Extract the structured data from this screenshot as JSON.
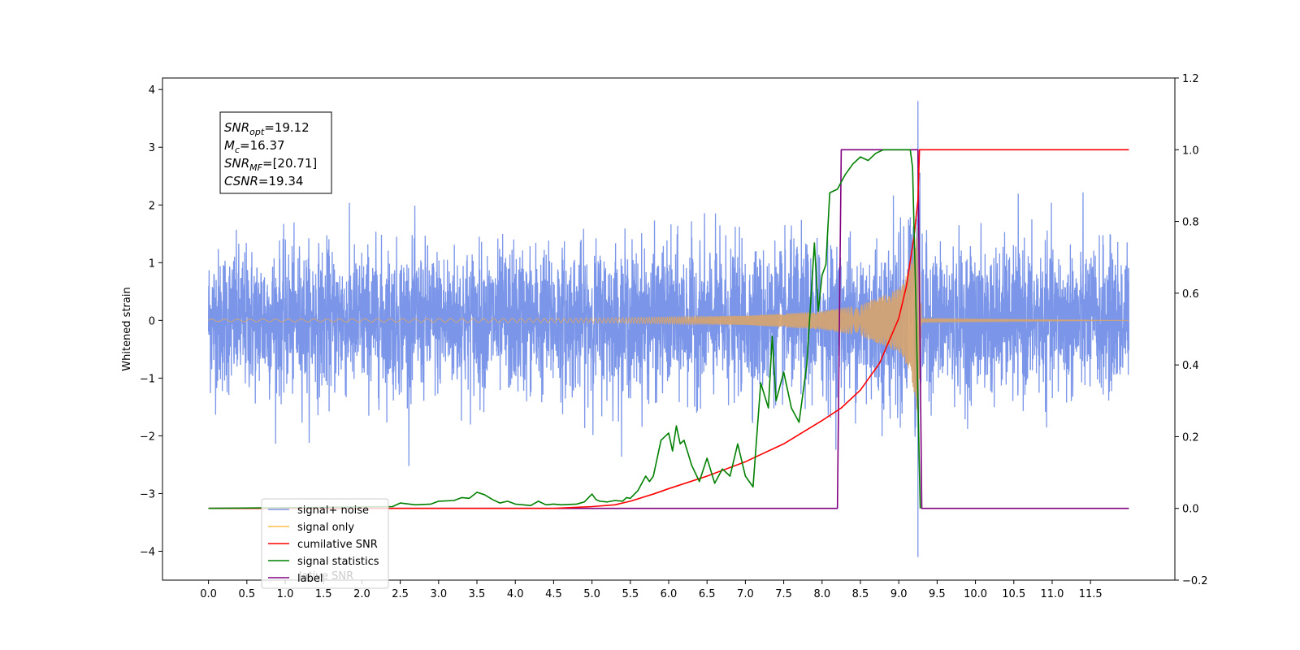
{
  "chart_data": {
    "type": "line",
    "ylabel_left": "Whitened strain",
    "xlim": [
      -0.6,
      12.6
    ],
    "ylim_left": [
      -4.5,
      4.2
    ],
    "ylim_right": [
      -0.2,
      1.2
    ],
    "xticks": [
      0.0,
      0.5,
      1.0,
      1.5,
      2.0,
      2.5,
      3.0,
      3.5,
      4.0,
      4.5,
      5.0,
      5.5,
      6.0,
      6.5,
      7.0,
      7.5,
      8.0,
      8.5,
      9.0,
      9.5,
      10.0,
      10.5,
      11.0,
      11.5
    ],
    "xtick_labels": [
      "0.0",
      "0.5",
      "1.0",
      "1.5",
      "2.0",
      "2.5",
      "3.0",
      "3.5",
      "4.0",
      "4.5",
      "5.0",
      "5.5",
      "6.0",
      "6.5",
      "7.0",
      "7.5",
      "8.0",
      "8.5",
      "9.0",
      "9.5",
      "10.0",
      "10.5",
      "11.0",
      "11.5"
    ],
    "yticks_left": [
      -4,
      -3,
      -2,
      -1,
      0,
      1,
      2,
      3,
      4
    ],
    "ytick_labels_left": [
      "−4",
      "−3",
      "−2",
      "−1",
      "0",
      "1",
      "2",
      "3",
      "4"
    ],
    "yticks_right": [
      -0.2,
      0.0,
      0.2,
      0.4,
      0.6,
      0.8,
      1.0,
      1.2
    ],
    "ytick_labels_right": [
      "−0.2",
      "0.0",
      "0.2",
      "0.4",
      "0.6",
      "0.8",
      "1.0",
      "1.2"
    ],
    "annotation": {
      "snr_opt": {
        "base": "SNR",
        "sub": "opt",
        "value": "=19.12"
      },
      "mc": {
        "base": "M",
        "sub": "c",
        "value": "=16.37"
      },
      "snr_mf": {
        "base": "SNR",
        "sub": "MF",
        "value": "=[20.71]"
      },
      "csnr": {
        "base": "CSNR",
        "sub": "",
        "value": "=19.34"
      }
    },
    "legend": {
      "placement": "lower-left",
      "entries": [
        {
          "label": "signal+ noise",
          "color": "#7b96e8"
        },
        {
          "label": "signal only",
          "color": "#ffc04d"
        },
        {
          "label": "cumilative SNR",
          "color": "#ff0000"
        },
        {
          "label": "signal statistics",
          "color": "#008000"
        },
        {
          "label": "label",
          "color": "#800080"
        }
      ],
      "ghost_text": "lative SNR"
    },
    "series": [
      {
        "name": "signal+ noise",
        "axis": "left",
        "color": "#7b96e8",
        "x_range": [
          0.0,
          12.0
        ],
        "noise_sigma": 0.62,
        "spike": {
          "x": 9.25,
          "high": 3.8,
          "low": -4.1
        }
      },
      {
        "name": "signal only",
        "axis": "left",
        "color": "#d4a373",
        "chirp_peak_x": 9.25,
        "envelope": [
          [
            0.0,
            0.02
          ],
          [
            5.0,
            0.04
          ],
          [
            7.0,
            0.08
          ],
          [
            8.0,
            0.16
          ],
          [
            8.5,
            0.27
          ],
          [
            9.0,
            0.55
          ],
          [
            9.15,
            0.9
          ],
          [
            9.25,
            1.7
          ],
          [
            9.3,
            0.03
          ],
          [
            12.0,
            0.0
          ]
        ]
      },
      {
        "name": "cumilative SNR",
        "axis": "right",
        "color": "#ff0000",
        "x": [
          0.0,
          4.5,
          5.0,
          5.3,
          5.5,
          5.8,
          6.0,
          6.5,
          7.0,
          7.5,
          8.0,
          8.25,
          8.5,
          8.75,
          9.0,
          9.1,
          9.2,
          9.25,
          9.27,
          12.0
        ],
        "y": [
          0.0,
          0.0,
          0.005,
          0.01,
          0.02,
          0.04,
          0.055,
          0.09,
          0.13,
          0.18,
          0.245,
          0.28,
          0.33,
          0.405,
          0.53,
          0.62,
          0.76,
          0.86,
          1.0,
          1.0
        ]
      },
      {
        "name": "signal statistics",
        "axis": "right",
        "color": "#008000",
        "x": [
          0.0,
          2.4,
          2.5,
          2.7,
          2.9,
          3.0,
          3.2,
          3.3,
          3.4,
          3.5,
          3.6,
          3.7,
          3.8,
          3.9,
          4.0,
          4.1,
          4.2,
          4.3,
          4.4,
          4.5,
          4.6,
          4.8,
          4.9,
          5.0,
          5.05,
          5.1,
          5.2,
          5.3,
          5.4,
          5.45,
          5.5,
          5.6,
          5.7,
          5.75,
          5.8,
          5.9,
          6.0,
          6.05,
          6.1,
          6.15,
          6.2,
          6.3,
          6.4,
          6.5,
          6.6,
          6.7,
          6.8,
          6.9,
          7.0,
          7.1,
          7.2,
          7.3,
          7.35,
          7.4,
          7.5,
          7.6,
          7.7,
          7.8,
          7.9,
          7.95,
          8.0,
          8.05,
          8.1,
          8.2,
          8.3,
          8.4,
          8.5,
          8.6,
          8.7,
          8.8,
          8.9,
          9.0,
          9.1,
          9.15,
          9.18,
          9.22,
          9.25,
          9.28
        ],
        "y": [
          0.0,
          0.005,
          0.015,
          0.01,
          0.012,
          0.02,
          0.022,
          0.03,
          0.028,
          0.045,
          0.038,
          0.025,
          0.015,
          0.02,
          0.012,
          0.01,
          0.008,
          0.02,
          0.01,
          0.012,
          0.01,
          0.012,
          0.018,
          0.04,
          0.025,
          0.02,
          0.018,
          0.022,
          0.02,
          0.03,
          0.028,
          0.05,
          0.09,
          0.075,
          0.09,
          0.19,
          0.21,
          0.16,
          0.23,
          0.18,
          0.19,
          0.12,
          0.075,
          0.14,
          0.07,
          0.11,
          0.09,
          0.18,
          0.09,
          0.06,
          0.35,
          0.28,
          0.48,
          0.3,
          0.38,
          0.28,
          0.24,
          0.4,
          0.74,
          0.55,
          0.65,
          0.68,
          0.88,
          0.89,
          0.93,
          0.96,
          0.98,
          0.97,
          0.99,
          1.0,
          1.0,
          1.0,
          1.0,
          1.0,
          0.95,
          0.6,
          0.3,
          0.0
        ]
      },
      {
        "name": "label",
        "axis": "right",
        "color": "#800080",
        "x": [
          0.0,
          8.2,
          8.25,
          9.25,
          9.3,
          12.0
        ],
        "y": [
          0.0,
          0.0,
          1.0,
          1.0,
          0.0,
          0.0
        ]
      }
    ]
  }
}
